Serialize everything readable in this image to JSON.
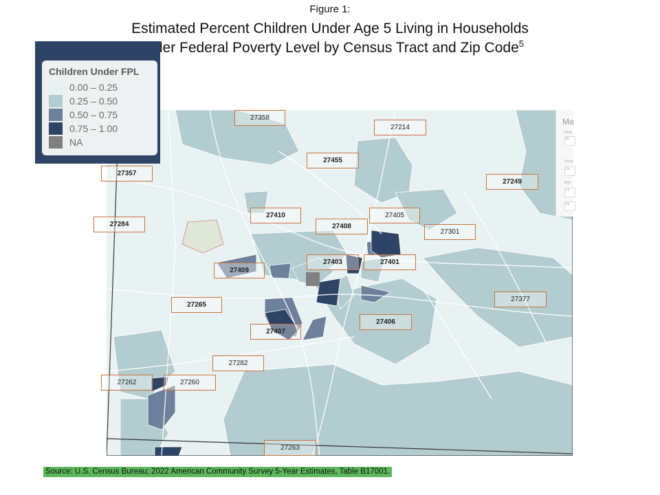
{
  "figure_label": "Figure 1:",
  "title_line1": "Estimated Percent Children Under Age 5 Living in Households",
  "title_line2": "Under Federal Poverty Level by Census Tract and Zip Code",
  "title_footnote": "5",
  "legend": {
    "title": "Children Under FPL",
    "items": [
      {
        "label": "0.00 – 0.25",
        "color": "#e6f1f1"
      },
      {
        "label": "0.25 – 0.50",
        "color": "#b3cccf"
      },
      {
        "label": "0.50 – 0.75",
        "color": "#6d809c"
      },
      {
        "label": "0.75 – 1.00",
        "color": "#2e4466"
      },
      {
        "label": "NA",
        "color": "#808080"
      }
    ]
  },
  "zip_codes": {
    "z27358": "27358",
    "z27214": "27214",
    "z27455": "27455",
    "z27357": "27357",
    "z27249": "27249",
    "z27410": "27410",
    "z27405": "27405",
    "z27284": "27284",
    "z27408": "27408",
    "z27301": "27301",
    "z27403": "27403",
    "z27401": "27401",
    "z27409": "27409",
    "z27377": "27377",
    "z27265": "27265",
    "z27406": "27406",
    "z27407": "27407",
    "z27282": "27282",
    "z27262": "27262",
    "z27260": "27260",
    "z27263": "27263"
  },
  "map_panel": {
    "title_partial": "Ma",
    "label_1": "Initia",
    "label_2": "Geog",
    "label_3": "Metr",
    "field_1": "All",
    "field_2": "Ce",
    "field_3": "Ch",
    "field_4": "Up"
  },
  "source": "Source: U.S. Census Bureau; 2022 American Community Survey 5-Year Estimates, Table B17001."
}
